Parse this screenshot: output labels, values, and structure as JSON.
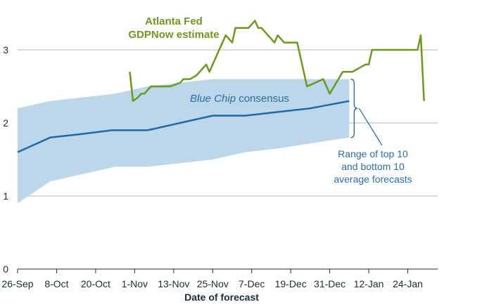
{
  "chart_data": {
    "type": "line",
    "title": "",
    "xlabel": "Date of forecast",
    "ylabel": "",
    "ylim": [
      0,
      3.4
    ],
    "yticks": [
      0,
      1,
      2,
      3
    ],
    "xlim": [
      0,
      124
    ],
    "x_ticks": [
      {
        "day": 0,
        "label": "26-Sep"
      },
      {
        "day": 12,
        "label": "8-Oct"
      },
      {
        "day": 24,
        "label": "20-Oct"
      },
      {
        "day": 36,
        "label": "1-Nov"
      },
      {
        "day": 48,
        "label": "13-Nov"
      },
      {
        "day": 60,
        "label": "25-Nov"
      },
      {
        "day": 72,
        "label": "7-Dec"
      },
      {
        "day": 84,
        "label": "19-Dec"
      },
      {
        "day": 96,
        "label": "31-Dec"
      },
      {
        "day": 108,
        "label": "12-Jan"
      },
      {
        "day": 120,
        "label": "24-Jan"
      }
    ],
    "grid": "horizontal",
    "series": [
      {
        "name": "Atlanta Fed GDPNow estimate",
        "label_lines": [
          "Atlanta Fed",
          "GDPNow estimate"
        ],
        "color": "#6a9a1f",
        "points": [
          [
            34.5,
            2.7
          ],
          [
            35.5,
            2.3
          ],
          [
            37,
            2.35
          ],
          [
            38,
            2.4
          ],
          [
            39,
            2.4
          ],
          [
            40,
            2.45
          ],
          [
            41,
            2.5
          ],
          [
            47,
            2.5
          ],
          [
            50,
            2.55
          ],
          [
            51,
            2.6
          ],
          [
            53,
            2.6
          ],
          [
            55,
            2.65
          ],
          [
            56,
            2.7
          ],
          [
            57,
            2.75
          ],
          [
            58,
            2.8
          ],
          [
            59,
            2.7
          ],
          [
            61,
            2.9
          ],
          [
            64,
            3.2
          ],
          [
            66,
            3.1
          ],
          [
            67,
            3.3
          ],
          [
            70,
            3.3
          ],
          [
            71,
            3.3
          ],
          [
            73,
            3.4
          ],
          [
            74,
            3.3
          ],
          [
            75,
            3.3
          ],
          [
            79,
            3.1
          ],
          [
            80,
            3.2
          ],
          [
            82,
            3.1
          ],
          [
            86,
            3.1
          ],
          [
            89,
            2.5
          ],
          [
            94,
            2.6
          ],
          [
            96,
            2.4
          ],
          [
            98,
            2.55
          ],
          [
            100,
            2.7
          ],
          [
            101.5,
            2.7
          ],
          [
            103,
            2.7
          ],
          [
            107,
            2.8
          ],
          [
            108,
            2.8
          ],
          [
            109,
            3.0
          ],
          [
            112,
            3.0
          ],
          [
            123,
            3.0
          ],
          [
            124,
            3.2
          ],
          [
            125,
            2.3
          ]
        ]
      },
      {
        "name": "Blue Chip consensus",
        "label_italic": "Blue Chip",
        "label_rest": " consensus",
        "color": "#1f6aa5",
        "points": [
          [
            0,
            1.6
          ],
          [
            10,
            1.8
          ],
          [
            20,
            1.85
          ],
          [
            29,
            1.9
          ],
          [
            40,
            1.9
          ],
          [
            60,
            2.1
          ],
          [
            70,
            2.1
          ],
          [
            80,
            2.15
          ],
          [
            90,
            2.2
          ],
          [
            102,
            2.3
          ]
        ]
      }
    ],
    "band": {
      "name": "Range of top 10 and bottom 10 average forecasts",
      "label_lines": [
        "Range of top 10",
        "and bottom 10",
        "average forecasts"
      ],
      "color": "#bcd6ea",
      "upper": [
        [
          0,
          2.2
        ],
        [
          10,
          2.3
        ],
        [
          20,
          2.35
        ],
        [
          30,
          2.4
        ],
        [
          40,
          2.5
        ],
        [
          60,
          2.6
        ],
        [
          102,
          2.6
        ]
      ],
      "lower": [
        [
          0,
          0.9
        ],
        [
          10,
          1.2
        ],
        [
          20,
          1.3
        ],
        [
          30,
          1.4
        ],
        [
          40,
          1.4
        ],
        [
          50,
          1.45
        ],
        [
          60,
          1.5
        ],
        [
          70,
          1.6
        ],
        [
          80,
          1.65
        ],
        [
          90,
          1.72
        ],
        [
          102,
          1.8
        ]
      ]
    }
  }
}
